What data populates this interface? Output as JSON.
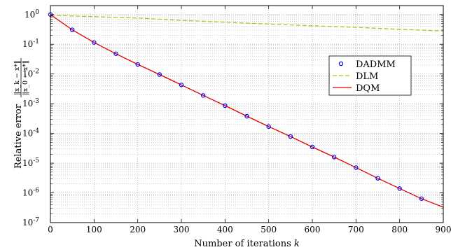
{
  "chart_data": {
    "type": "line",
    "xlabel": "Number of iterations",
    "xlabel_var": "k",
    "ylabel": "Relative error",
    "ylabel_num": "‖x_k − x*‖",
    "ylabel_den": "‖x_0 − x*‖",
    "xlim": [
      0,
      900
    ],
    "x_ticks": [
      0,
      100,
      200,
      300,
      400,
      500,
      600,
      700,
      800,
      900
    ],
    "ylim": [
      1e-07,
      2
    ],
    "y_scale": "log",
    "y_ticks": [
      {
        "value": 1,
        "label": "10^0"
      },
      {
        "value": 0.1,
        "label": "10^-1"
      },
      {
        "value": 0.01,
        "label": "10^-2"
      },
      {
        "value": 0.001,
        "label": "10^-3"
      },
      {
        "value": 0.0001,
        "label": "10^-4"
      },
      {
        "value": 1e-05,
        "label": "10^-5"
      },
      {
        "value": 1e-06,
        "label": "10^-6"
      },
      {
        "value": 1e-07,
        "label": "10^-7"
      }
    ],
    "grid": true,
    "legend_position": "right",
    "series": [
      {
        "name": "DADMM",
        "color": "#0000ff",
        "style": "markers",
        "marker": "circle",
        "x": [
          0,
          50,
          100,
          150,
          200,
          250,
          300,
          350,
          400,
          450,
          500,
          550,
          600,
          650,
          700,
          750,
          800,
          850
        ],
        "y": [
          1,
          0.307,
          0.115,
          0.048,
          0.021,
          0.0096,
          0.0043,
          0.0019,
          0.00086,
          0.00038,
          0.00017,
          7.9e-05,
          3.5e-05,
          1.6e-05,
          7.1e-06,
          3.1e-06,
          1.4e-06,
          6.4e-07
        ]
      },
      {
        "name": "DLM",
        "color": "#b5c21a",
        "style": "dashed",
        "x": [
          0,
          100,
          200,
          300,
          400,
          500,
          600,
          700,
          800,
          900
        ],
        "y": [
          0.95,
          0.85,
          0.76,
          0.64,
          0.55,
          0.48,
          0.42,
          0.37,
          0.32,
          0.28
        ]
      },
      {
        "name": "DQM",
        "color": "#e00000",
        "style": "solid",
        "x": [
          0,
          50,
          100,
          150,
          200,
          250,
          300,
          350,
          400,
          450,
          500,
          550,
          600,
          650,
          700,
          750,
          800,
          850,
          900
        ],
        "y": [
          1,
          0.307,
          0.115,
          0.048,
          0.021,
          0.0096,
          0.0043,
          0.0019,
          0.00086,
          0.00038,
          0.00017,
          7.9e-05,
          3.5e-05,
          1.6e-05,
          7.1e-06,
          3.1e-06,
          1.4e-06,
          6.4e-07,
          3.3e-07
        ]
      }
    ]
  }
}
